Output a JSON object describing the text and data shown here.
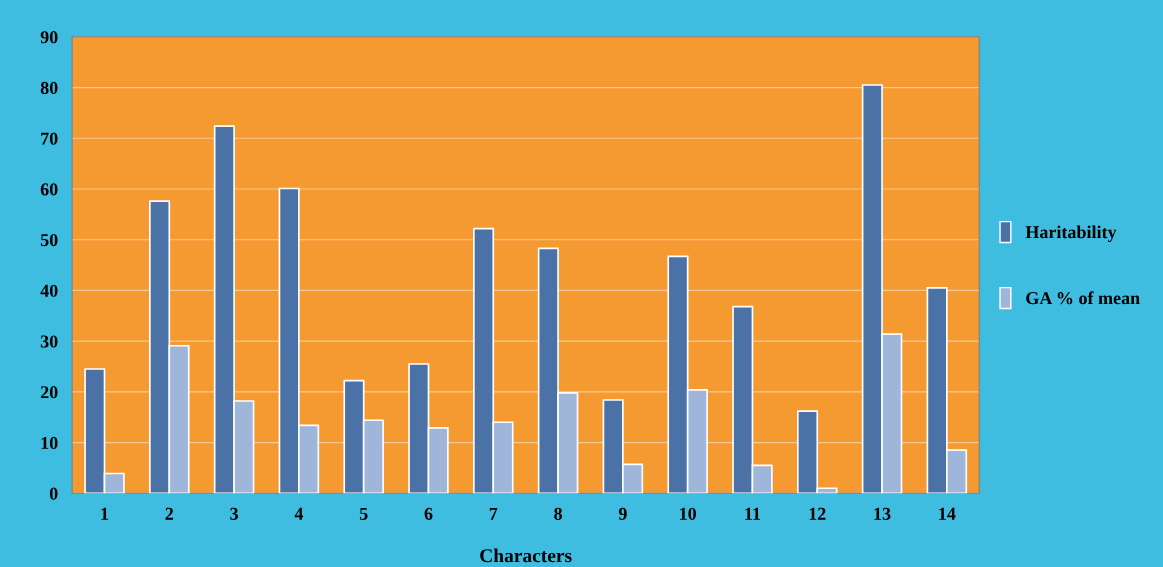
{
  "chart_data": {
    "type": "bar",
    "xlabel": "Characters",
    "categories": [
      "1",
      "2",
      "3",
      "4",
      "5",
      "6",
      "7",
      "8",
      "9",
      "10",
      "11",
      "12",
      "13",
      "14"
    ],
    "series": [
      {
        "name": "Haritability",
        "color": "#4a72a6",
        "values": [
          24.5,
          57.6,
          72.4,
          60.1,
          22.2,
          25.5,
          52.2,
          48.3,
          18.4,
          46.7,
          36.8,
          16.2,
          80.5,
          40.5
        ]
      },
      {
        "name": "GA % of mean",
        "color": "#9fb5da",
        "values": [
          3.9,
          29.1,
          18.2,
          13.4,
          14.4,
          12.9,
          14.0,
          19.8,
          5.7,
          20.4,
          5.5,
          1.0,
          31.4,
          8.5
        ]
      }
    ],
    "ylim": [
      0,
      90
    ],
    "yticks": [
      0,
      10,
      20,
      30,
      40,
      50,
      60,
      70,
      80,
      90
    ],
    "grid": "y",
    "legend": "right"
  }
}
